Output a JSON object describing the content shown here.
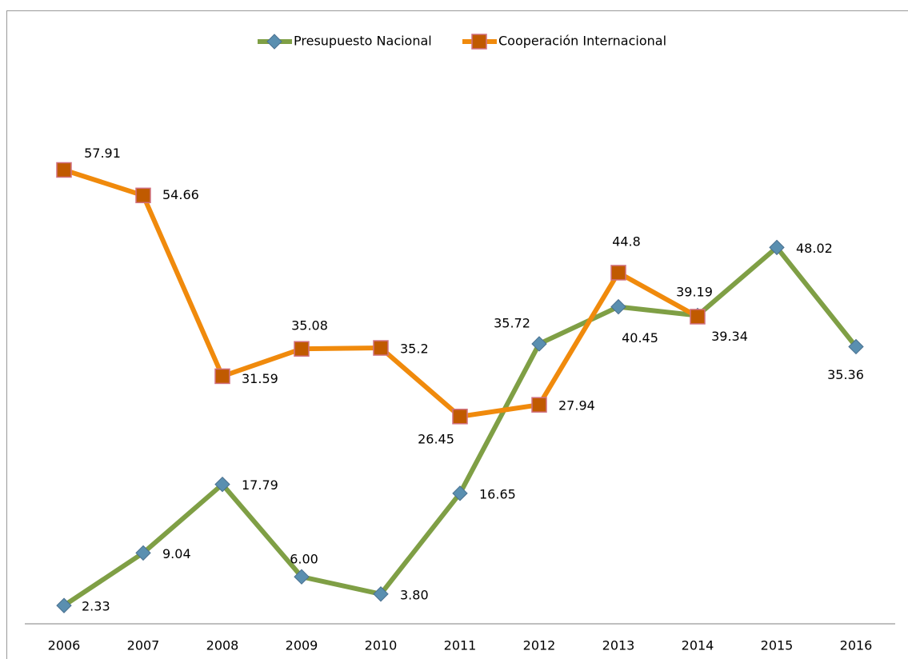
{
  "chart_data": {
    "type": "line",
    "categories": [
      "2006",
      "2007",
      "2008",
      "2009",
      "2010",
      "2011",
      "2012",
      "2013",
      "2014",
      "2015",
      "2016"
    ],
    "series": [
      {
        "name": "Presupuesto Nacional",
        "color": "#7f9f45",
        "marker": "diamond",
        "values": [
          2.33,
          9.04,
          17.79,
          6.0,
          3.8,
          16.65,
          35.72,
          40.45,
          39.34,
          48.02,
          35.36
        ],
        "value_labels": [
          "2.33",
          "9.04",
          "17.79",
          "6.00",
          "3.80",
          "16.65",
          "35.72",
          "40.45",
          "39.34",
          "48.02",
          "35.36"
        ]
      },
      {
        "name": "Cooperación Internacional",
        "color": "#f08a0c",
        "marker": "square",
        "values": [
          57.91,
          54.66,
          31.59,
          35.08,
          35.2,
          26.45,
          27.94,
          44.8,
          39.19,
          null,
          null
        ]
      }
    ],
    "ylim": [
      0,
      70
    ],
    "legend": "top"
  }
}
